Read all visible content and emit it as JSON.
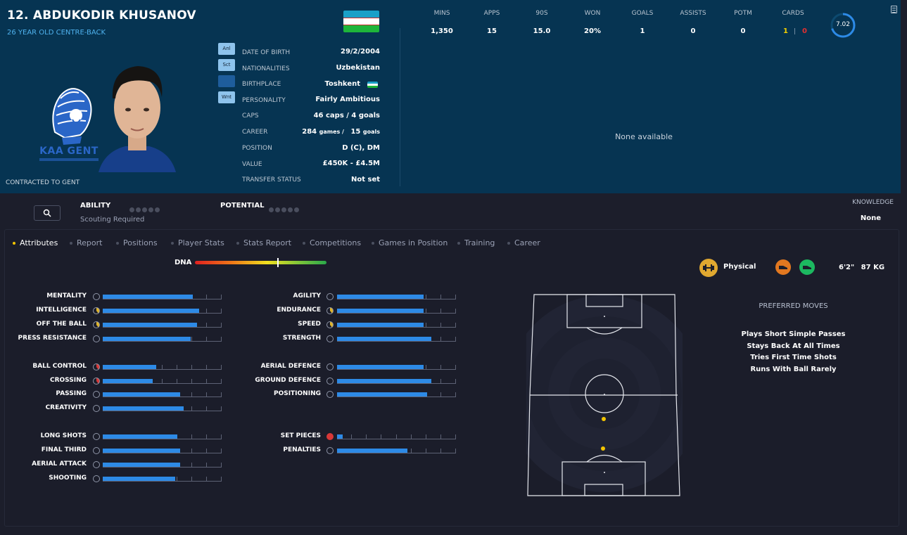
{
  "header": {
    "player_name": "12. ABDUKODIR KHUSANOV",
    "subtitle": "26 YEAR OLD CENTRE-BACK",
    "club_logo_text": "KAA GENT",
    "contract": "CONTRACTED TO GENT",
    "side_buttons": [
      "Anl",
      "Sct",
      "",
      "Wnt"
    ]
  },
  "details": [
    {
      "label": "DATE OF BIRTH",
      "value": "29/2/2004"
    },
    {
      "label": "NATIONALITIES",
      "value": "Uzbekistan"
    },
    {
      "label": "BIRTHPLACE",
      "value": "Toshkent"
    },
    {
      "label": "PERSONALITY",
      "value": "Fairly Ambitious"
    },
    {
      "label": "CAPS",
      "value": "46 caps / 4 goals"
    },
    {
      "label": "CAREER",
      "value": "284",
      "value_a": "games /",
      "value_b": "15",
      "value_c": "goals"
    },
    {
      "label": "POSITION",
      "value": "D (C), DM"
    },
    {
      "label": "VALUE",
      "value": "£450K - £4.5M"
    },
    {
      "label": "TRANSFER STATUS",
      "value": "Not set"
    }
  ],
  "stats": [
    {
      "label": "MINS",
      "value": "1,350"
    },
    {
      "label": "APPS",
      "value": "15"
    },
    {
      "label": "90S",
      "value": "15.0"
    },
    {
      "label": "WON",
      "value": "20%"
    },
    {
      "label": "GOALS",
      "value": "1"
    },
    {
      "label": "ASSISTS",
      "value": "0"
    },
    {
      "label": "POTM",
      "value": "0"
    },
    {
      "label": "CARDS",
      "yellow": "1",
      "red": "0"
    }
  ],
  "rating": {
    "value": "7.02",
    "fraction": 0.702
  },
  "right_panel": {
    "empty_text": "None available"
  },
  "ability": {
    "label": "ABILITY",
    "sub": "Scouting Required",
    "potential_label": "POTENTIAL",
    "knowledge_label": "KNOWLEDGE",
    "knowledge_value": "None"
  },
  "tabs": [
    "Attributes",
    "Report",
    "Positions",
    "Player Stats",
    "Stats Report",
    "Competitions",
    "Games in Position",
    "Training",
    "Career"
  ],
  "active_tab": "Attributes",
  "dna": {
    "label": "DNA",
    "marker_fraction": 0.63
  },
  "physical": {
    "label": "Physical",
    "height": "6'2\"",
    "weight": "87 KG"
  },
  "attributes_left": [
    [
      {
        "label": "MENTALITY",
        "fraction": 0.76,
        "icon": "gray"
      },
      {
        "label": "INTELLIGENCE",
        "fraction": 0.81,
        "icon": "yellow"
      },
      {
        "label": "OFF THE BALL",
        "fraction": 0.79,
        "icon": "yellow"
      },
      {
        "label": "PRESS RESISTANCE",
        "fraction": 0.74,
        "icon": "gray"
      }
    ],
    [
      {
        "label": "BALL CONTROL",
        "fraction": 0.45,
        "icon": "red"
      },
      {
        "label": "CROSSING",
        "fraction": 0.42,
        "icon": "red"
      },
      {
        "label": "PASSING",
        "fraction": 0.65,
        "icon": "gray"
      },
      {
        "label": "CREATIVITY",
        "fraction": 0.68,
        "icon": "gray"
      }
    ],
    [
      {
        "label": "LONG SHOTS",
        "fraction": 0.63,
        "icon": "gray"
      },
      {
        "label": "FINAL THIRD",
        "fraction": 0.65,
        "icon": "gray"
      },
      {
        "label": "AERIAL ATTACK",
        "fraction": 0.65,
        "icon": "gray"
      },
      {
        "label": "SHOOTING",
        "fraction": 0.61,
        "icon": "gray"
      }
    ]
  ],
  "attributes_right": [
    [
      {
        "label": "AGILITY",
        "fraction": 0.73,
        "icon": "gray"
      },
      {
        "label": "ENDURANCE",
        "fraction": 0.73,
        "icon": "yellow"
      },
      {
        "label": "SPEED",
        "fraction": 0.73,
        "icon": "yellow"
      },
      {
        "label": "STRENGTH",
        "fraction": 0.79,
        "icon": "gray"
      }
    ],
    [
      {
        "label": "AERIAL DEFENCE",
        "fraction": 0.73,
        "icon": "gray"
      },
      {
        "label": "GROUND DEFENCE",
        "fraction": 0.79,
        "icon": "gray"
      },
      {
        "label": "POSITIONING",
        "fraction": 0.76,
        "icon": "gray"
      }
    ],
    [
      {
        "label": "SET PIECES",
        "fraction": 0.05,
        "icon": "redfill"
      },
      {
        "label": "PENALTIES",
        "fraction": 0.59,
        "icon": "gray"
      }
    ]
  ],
  "preferred_moves": {
    "title": "PREFERRED MOVES",
    "items": [
      "Plays Short Simple Passes",
      "Stays Back At All Times",
      "Tries First Time Shots",
      "Runs With Ball Rarely"
    ]
  },
  "colors": {
    "accent": "#2d8ae6",
    "header_bg": "#063452",
    "link": "#4fb2ee",
    "active_dot": "#f4c500"
  }
}
